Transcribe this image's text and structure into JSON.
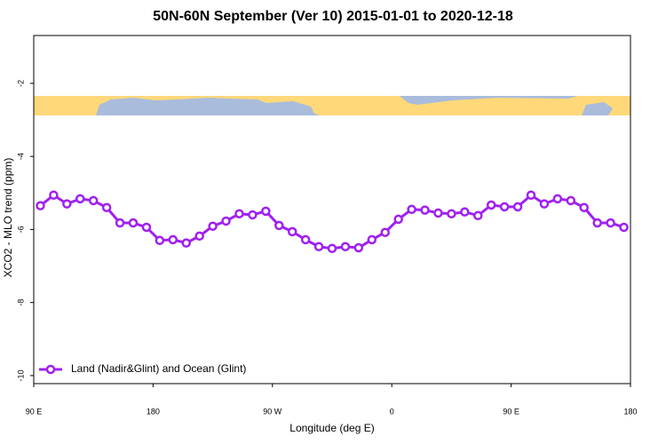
{
  "chart_data": {
    "type": "line",
    "title": "50N-60N September (Ver 10)   2015-01-01 to 2020-12-18",
    "x_label": "Longitude (deg E)",
    "y_label": "XCO2 - MLO trend (ppm)",
    "x": [
      95,
      105,
      115,
      125,
      135,
      145,
      155,
      165,
      175,
      185,
      195,
      205,
      215,
      225,
      235,
      245,
      255,
      265,
      275,
      285,
      295,
      305,
      315,
      325,
      335,
      345,
      355,
      365,
      375,
      385,
      395,
      405,
      415,
      425,
      435,
      445,
      455,
      465,
      475,
      485,
      495,
      505,
      515,
      525,
      535
    ],
    "series": [
      {
        "name": "Land (Nadir&Glint) and Ocean (Glint)",
        "color": "#a020f0",
        "values": [
          -5.35,
          -5.06,
          -5.3,
          -5.16,
          -5.21,
          -5.4,
          -5.82,
          -5.82,
          -5.94,
          -6.3,
          -6.28,
          -6.37,
          -6.18,
          -5.91,
          -5.77,
          -5.57,
          -5.6,
          -5.5,
          -5.89,
          -6.06,
          -6.28,
          -6.47,
          -6.52,
          -6.47,
          -6.5,
          -6.28,
          -6.08,
          -5.72,
          -5.45,
          -5.47,
          -5.55,
          -5.57,
          -5.52,
          -5.62,
          -5.33,
          -5.38,
          -5.38,
          -5.06,
          -5.3,
          -5.16,
          -5.21,
          -5.4,
          -5.82,
          -5.82,
          -5.94
        ]
      }
    ],
    "xlim": [
      90,
      540
    ],
    "xticks": [
      {
        "value": 90,
        "label": "90 E"
      },
      180,
      {
        "value": 270,
        "label": "90 W"
      },
      {
        "value": 360,
        "label": "0"
      },
      {
        "value": 450,
        "label": "90 E"
      },
      {
        "value": 540,
        "label": "180"
      }
    ],
    "ylim": [
      -10.22,
      -0.69
    ],
    "yticks": [
      -2,
      -4,
      -6,
      -8,
      -10
    ],
    "legend": "bottom-left"
  }
}
